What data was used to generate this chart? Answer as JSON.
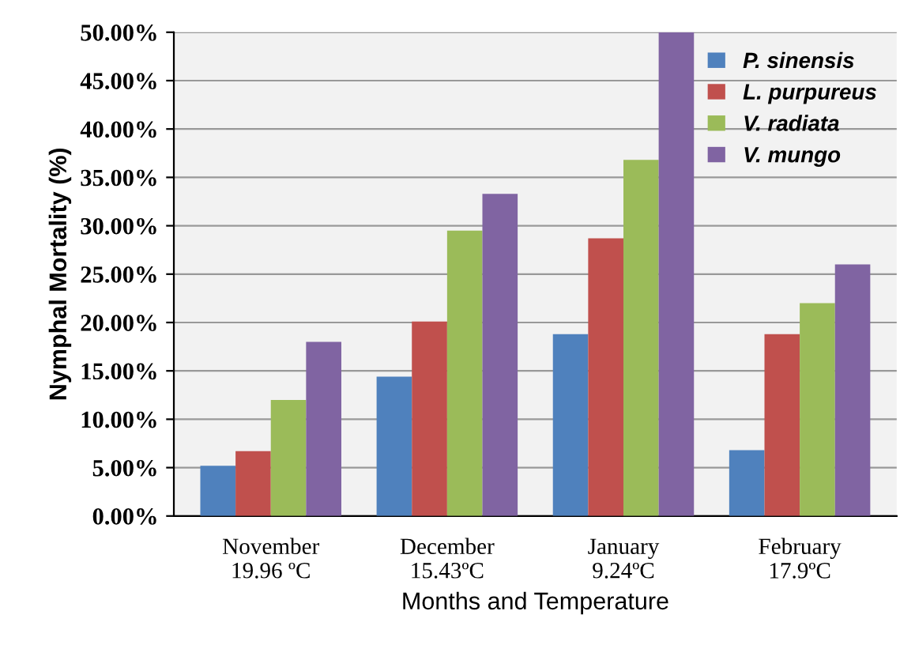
{
  "chart_data": {
    "type": "bar",
    "ylabel": "Nymphal Mortality (%)",
    "xlabel": "Months and Temperature",
    "categories": [
      "November\n19.96 ºC",
      "December\n15.43ºC",
      "January\n9.24ºC",
      "February\n17.9ºC"
    ],
    "series": [
      {
        "name": "P. sinensis",
        "color": "#4f81bd",
        "values": [
          5.2,
          14.4,
          18.8,
          6.8
        ]
      },
      {
        "name": "L. purpureus",
        "color": "#c0504d",
        "values": [
          6.7,
          20.1,
          28.7,
          18.8
        ]
      },
      {
        "name": "V. radiata",
        "color": "#9bbb59",
        "values": [
          12.0,
          29.5,
          36.8,
          22.0
        ]
      },
      {
        "name": "V. mungo",
        "color": "#8064a2",
        "values": [
          18.0,
          33.3,
          50.0,
          26.0
        ]
      }
    ],
    "ylim": [
      0,
      50
    ],
    "yticks": [
      {
        "value": 0,
        "label": "0.00%"
      },
      {
        "value": 5,
        "label": "5.00%"
      },
      {
        "value": 10,
        "label": "10.00%"
      },
      {
        "value": 15,
        "label": "15.00%"
      },
      {
        "value": 20,
        "label": "20.00%"
      },
      {
        "value": 25,
        "label": "25.00%"
      },
      {
        "value": 30,
        "label": "30.00%"
      },
      {
        "value": 35,
        "label": "35.00%"
      },
      {
        "value": 40,
        "label": "40.00%"
      },
      {
        "value": 45,
        "label": "45.00%"
      },
      {
        "value": 50,
        "label": "50.00%"
      }
    ],
    "grid": "y",
    "legend": "top right"
  }
}
